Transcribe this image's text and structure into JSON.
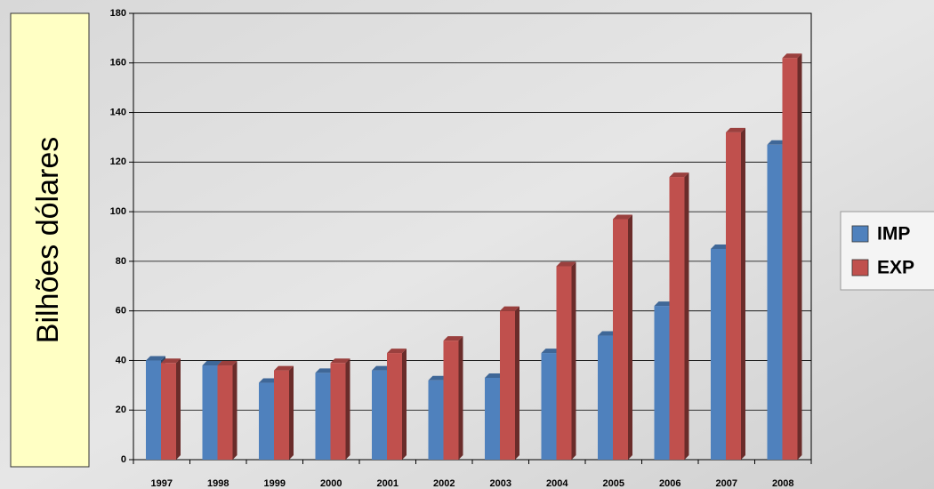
{
  "chart_data": {
    "type": "bar",
    "y_label": "Bilhões dólares",
    "categories": [
      "1997",
      "1998",
      "1999",
      "2000",
      "2001",
      "2002",
      "2003",
      "2004",
      "2005",
      "2006",
      "2007",
      "2008"
    ],
    "series": [
      {
        "name": "IMP",
        "color": "#4f81bd",
        "values": [
          40,
          38,
          31,
          35,
          36,
          32,
          33,
          43,
          50,
          62,
          85,
          127
        ]
      },
      {
        "name": "EXP",
        "color": "#c0504d",
        "values": [
          39,
          38,
          36,
          39,
          43,
          48,
          60,
          78,
          97,
          114,
          132,
          162
        ]
      }
    ],
    "ylim": [
      0,
      180
    ],
    "yticks": [
      0,
      20,
      40,
      60,
      80,
      100,
      120,
      140,
      160,
      180
    ],
    "grid": true,
    "legend": "right"
  }
}
